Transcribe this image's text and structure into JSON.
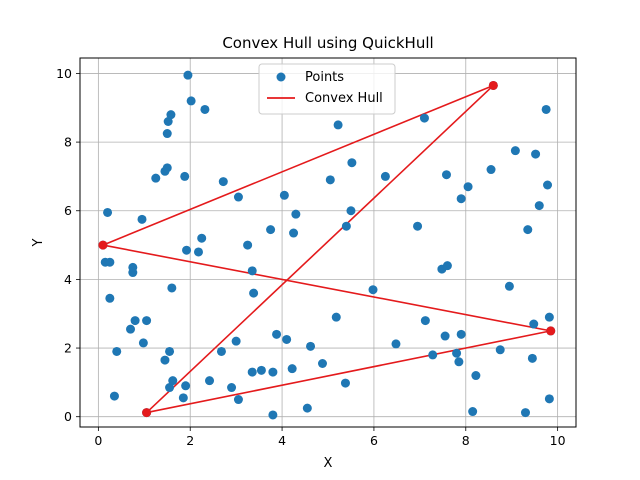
{
  "chart_data": {
    "type": "scatter",
    "title": "Convex Hull using QuickHull",
    "xlabel": "X",
    "ylabel": "Y",
    "xlim": [
      -0.4,
      10.4
    ],
    "ylim": [
      -0.3,
      10.45
    ],
    "xticks": [
      0,
      2,
      4,
      6,
      8,
      10
    ],
    "yticks": [
      0,
      2,
      4,
      6,
      8,
      10
    ],
    "grid": true,
    "legend": {
      "placement": "top-center",
      "entries": [
        "Points",
        "Convex Hull"
      ]
    },
    "colors": {
      "points": "#1f77b4",
      "hull": "#e41a1c",
      "hull_vertices": "#e41a1c"
    },
    "series": [
      {
        "name": "Points",
        "type": "scatter",
        "points": [
          [
            0.1,
            5.0
          ],
          [
            0.15,
            4.5
          ],
          [
            0.2,
            5.95
          ],
          [
            0.25,
            4.5
          ],
          [
            0.25,
            3.45
          ],
          [
            0.35,
            0.6
          ],
          [
            0.4,
            1.9
          ],
          [
            0.7,
            2.55
          ],
          [
            0.75,
            4.2
          ],
          [
            0.75,
            4.35
          ],
          [
            0.8,
            2.8
          ],
          [
            0.95,
            5.75
          ],
          [
            0.98,
            2.15
          ],
          [
            1.05,
            2.8
          ],
          [
            1.05,
            0.12
          ],
          [
            1.25,
            6.95
          ],
          [
            1.45,
            7.15
          ],
          [
            1.45,
            1.65
          ],
          [
            1.5,
            8.25
          ],
          [
            1.5,
            7.25
          ],
          [
            1.52,
            8.6
          ],
          [
            1.55,
            0.85
          ],
          [
            1.55,
            1.9
          ],
          [
            1.58,
            8.8
          ],
          [
            1.6,
            3.75
          ],
          [
            1.62,
            1.05
          ],
          [
            1.85,
            0.55
          ],
          [
            1.88,
            7.0
          ],
          [
            1.9,
            0.9
          ],
          [
            1.92,
            4.85
          ],
          [
            1.95,
            9.95
          ],
          [
            2.02,
            9.2
          ],
          [
            2.18,
            4.8
          ],
          [
            2.25,
            5.2
          ],
          [
            2.32,
            8.95
          ],
          [
            2.42,
            1.05
          ],
          [
            2.68,
            1.9
          ],
          [
            2.72,
            6.85
          ],
          [
            2.9,
            0.85
          ],
          [
            3.0,
            2.2
          ],
          [
            3.05,
            0.5
          ],
          [
            3.05,
            6.4
          ],
          [
            3.25,
            5.0
          ],
          [
            3.35,
            4.25
          ],
          [
            3.35,
            1.3
          ],
          [
            3.38,
            3.6
          ],
          [
            3.55,
            1.35
          ],
          [
            3.75,
            5.45
          ],
          [
            3.8,
            0.05
          ],
          [
            3.8,
            1.3
          ],
          [
            3.88,
            2.4
          ],
          [
            4.05,
            6.45
          ],
          [
            4.1,
            2.25
          ],
          [
            4.22,
            1.4
          ],
          [
            4.25,
            5.35
          ],
          [
            4.3,
            5.9
          ],
          [
            4.55,
            0.25
          ],
          [
            4.62,
            2.05
          ],
          [
            4.88,
            1.55
          ],
          [
            5.05,
            6.9
          ],
          [
            5.18,
            2.9
          ],
          [
            5.22,
            8.5
          ],
          [
            5.38,
            0.98
          ],
          [
            5.4,
            5.55
          ],
          [
            5.5,
            6.0
          ],
          [
            5.52,
            7.4
          ],
          [
            5.98,
            3.7
          ],
          [
            6.25,
            7.0
          ],
          [
            6.48,
            2.12
          ],
          [
            6.95,
            5.55
          ],
          [
            7.1,
            8.7
          ],
          [
            7.12,
            2.8
          ],
          [
            7.28,
            1.8
          ],
          [
            7.48,
            4.3
          ],
          [
            7.55,
            2.35
          ],
          [
            7.58,
            7.05
          ],
          [
            7.6,
            4.4
          ],
          [
            7.8,
            1.85
          ],
          [
            7.85,
            1.6
          ],
          [
            7.9,
            6.35
          ],
          [
            7.9,
            2.4
          ],
          [
            8.05,
            6.7
          ],
          [
            8.15,
            0.15
          ],
          [
            8.22,
            1.2
          ],
          [
            8.55,
            7.2
          ],
          [
            8.6,
            9.65
          ],
          [
            8.75,
            1.95
          ],
          [
            8.95,
            3.8
          ],
          [
            9.08,
            7.75
          ],
          [
            9.3,
            0.12
          ],
          [
            9.35,
            5.45
          ],
          [
            9.45,
            1.7
          ],
          [
            9.48,
            2.7
          ],
          [
            9.52,
            7.65
          ],
          [
            9.6,
            6.15
          ],
          [
            9.75,
            8.95
          ],
          [
            9.78,
            6.75
          ],
          [
            9.82,
            2.9
          ],
          [
            9.82,
            0.52
          ],
          [
            9.85,
            2.5
          ]
        ]
      },
      {
        "name": "Convex Hull",
        "type": "line",
        "segments": [
          [
            [
              0.1,
              5.0
            ],
            [
              8.6,
              9.65
            ]
          ],
          [
            [
              8.6,
              9.65
            ],
            [
              1.05,
              0.12
            ]
          ],
          [
            [
              1.05,
              0.12
            ],
            [
              9.85,
              2.5
            ]
          ],
          [
            [
              9.85,
              2.5
            ],
            [
              0.1,
              5.0
            ]
          ]
        ],
        "vertices": [
          [
            0.1,
            5.0
          ],
          [
            8.6,
            9.65
          ],
          [
            1.05,
            0.12
          ],
          [
            9.85,
            2.5
          ]
        ]
      }
    ]
  }
}
